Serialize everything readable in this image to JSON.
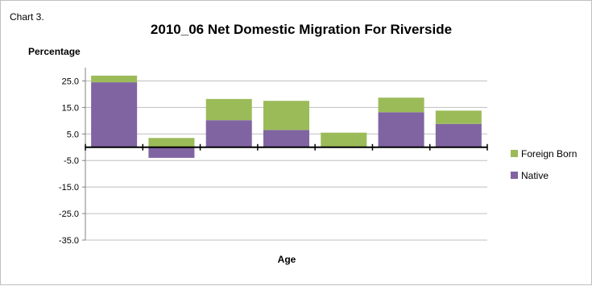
{
  "chart_label": "Chart 3.",
  "chart_data": {
    "type": "bar",
    "stacked": true,
    "title": "2010_06 Net Domestic Migration For Riverside",
    "ylabel": "Percentage",
    "xlabel": "Age",
    "categories": [
      "",
      "",
      "",
      "",
      "",
      "",
      ""
    ],
    "ylim": [
      -35,
      30
    ],
    "yticks": [
      25.0,
      15.0,
      5.0,
      -5.0,
      -15.0,
      -25.0,
      -35.0
    ],
    "ytick_labels": [
      "25.0",
      "15.0",
      "5.0",
      "-5.0",
      "-15.0",
      "-25.0",
      "-35.0"
    ],
    "grid": true,
    "legend_position": "right",
    "series": [
      {
        "name": "Native",
        "color": "#8064a2",
        "values": [
          24.5,
          -4.0,
          10.2,
          6.5,
          0.0,
          13.2,
          8.8
        ]
      },
      {
        "name": "Foreign Born",
        "color": "#9bbb59",
        "values": [
          2.5,
          3.5,
          8.0,
          11.0,
          5.5,
          5.5,
          5.0
        ]
      }
    ]
  }
}
